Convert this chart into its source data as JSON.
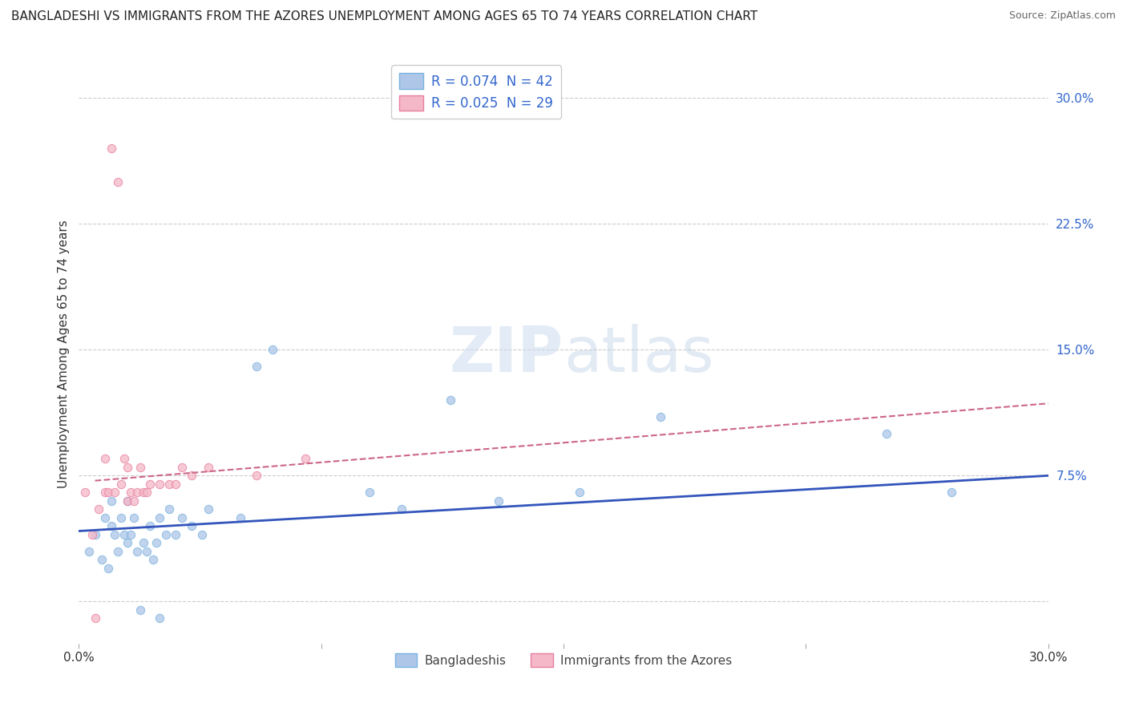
{
  "title": "BANGLADESHI VS IMMIGRANTS FROM THE AZORES UNEMPLOYMENT AMONG AGES 65 TO 74 YEARS CORRELATION CHART",
  "source": "Source: ZipAtlas.com",
  "ylabel": "Unemployment Among Ages 65 to 74 years",
  "xlim": [
    0.0,
    0.3
  ],
  "ylim": [
    -0.025,
    0.32
  ],
  "yticks": [
    0.0,
    0.075,
    0.15,
    0.225,
    0.3
  ],
  "ytick_right_labels": [
    "",
    "7.5%",
    "15.0%",
    "22.5%",
    "30.0%"
  ],
  "legend_items": [
    {
      "label": "R = 0.074  N = 42",
      "color": "#aec6e8",
      "edge": "#7ab3e0"
    },
    {
      "label": "R = 0.025  N = 29",
      "color": "#f4b8c8",
      "edge": "#e87fa0"
    }
  ],
  "legend_bottom": [
    {
      "label": "Bangladeshis",
      "color": "#aec6e8",
      "edge": "#7ab3e0"
    },
    {
      "label": "Immigrants from the Azores",
      "color": "#f4b8c8",
      "edge": "#e87fa0"
    }
  ],
  "blue_scatter_x": [
    0.003,
    0.005,
    0.007,
    0.008,
    0.009,
    0.01,
    0.01,
    0.011,
    0.012,
    0.013,
    0.014,
    0.015,
    0.015,
    0.016,
    0.017,
    0.018,
    0.019,
    0.02,
    0.021,
    0.022,
    0.023,
    0.024,
    0.025,
    0.025,
    0.027,
    0.028,
    0.03,
    0.032,
    0.035,
    0.038,
    0.04,
    0.05,
    0.055,
    0.06,
    0.09,
    0.1,
    0.115,
    0.13,
    0.155,
    0.18,
    0.25,
    0.27
  ],
  "blue_scatter_y": [
    0.03,
    0.04,
    0.025,
    0.05,
    0.02,
    0.045,
    0.06,
    0.04,
    0.03,
    0.05,
    0.04,
    0.035,
    0.06,
    0.04,
    0.05,
    0.03,
    -0.005,
    0.035,
    0.03,
    0.045,
    0.025,
    0.035,
    -0.01,
    0.05,
    0.04,
    0.055,
    0.04,
    0.05,
    0.045,
    0.04,
    0.055,
    0.05,
    0.14,
    0.15,
    0.065,
    0.055,
    0.12,
    0.06,
    0.065,
    0.11,
    0.1,
    0.065
  ],
  "pink_scatter_x": [
    0.002,
    0.004,
    0.005,
    0.006,
    0.008,
    0.008,
    0.009,
    0.01,
    0.011,
    0.012,
    0.013,
    0.014,
    0.015,
    0.015,
    0.016,
    0.017,
    0.018,
    0.019,
    0.02,
    0.021,
    0.022,
    0.025,
    0.028,
    0.03,
    0.032,
    0.035,
    0.04,
    0.055,
    0.07
  ],
  "pink_scatter_y": [
    0.065,
    0.04,
    -0.01,
    0.055,
    0.085,
    0.065,
    0.065,
    0.27,
    0.065,
    0.25,
    0.07,
    0.085,
    0.06,
    0.08,
    0.065,
    0.06,
    0.065,
    0.08,
    0.065,
    0.065,
    0.07,
    0.07,
    0.07,
    0.07,
    0.08,
    0.075,
    0.08,
    0.075,
    0.085
  ],
  "blue_line_x": [
    0.0,
    0.3
  ],
  "blue_line_y": [
    0.042,
    0.075
  ],
  "pink_line_x": [
    0.005,
    0.3
  ],
  "pink_line_y": [
    0.072,
    0.118
  ],
  "scatter_size": 55,
  "scatter_alpha": 0.75,
  "blue_face": "#aec6e8",
  "blue_edge": "#7ab3e0",
  "pink_face": "#f4b8c8",
  "pink_edge": "#e87fa0",
  "line_blue": "#3355bb",
  "line_pink": "#cc6688",
  "grid_color": "#cccccc",
  "background": "#ffffff",
  "title_fontsize": 11,
  "label_fontsize": 11,
  "tick_fontsize": 11,
  "source_fontsize": 9
}
